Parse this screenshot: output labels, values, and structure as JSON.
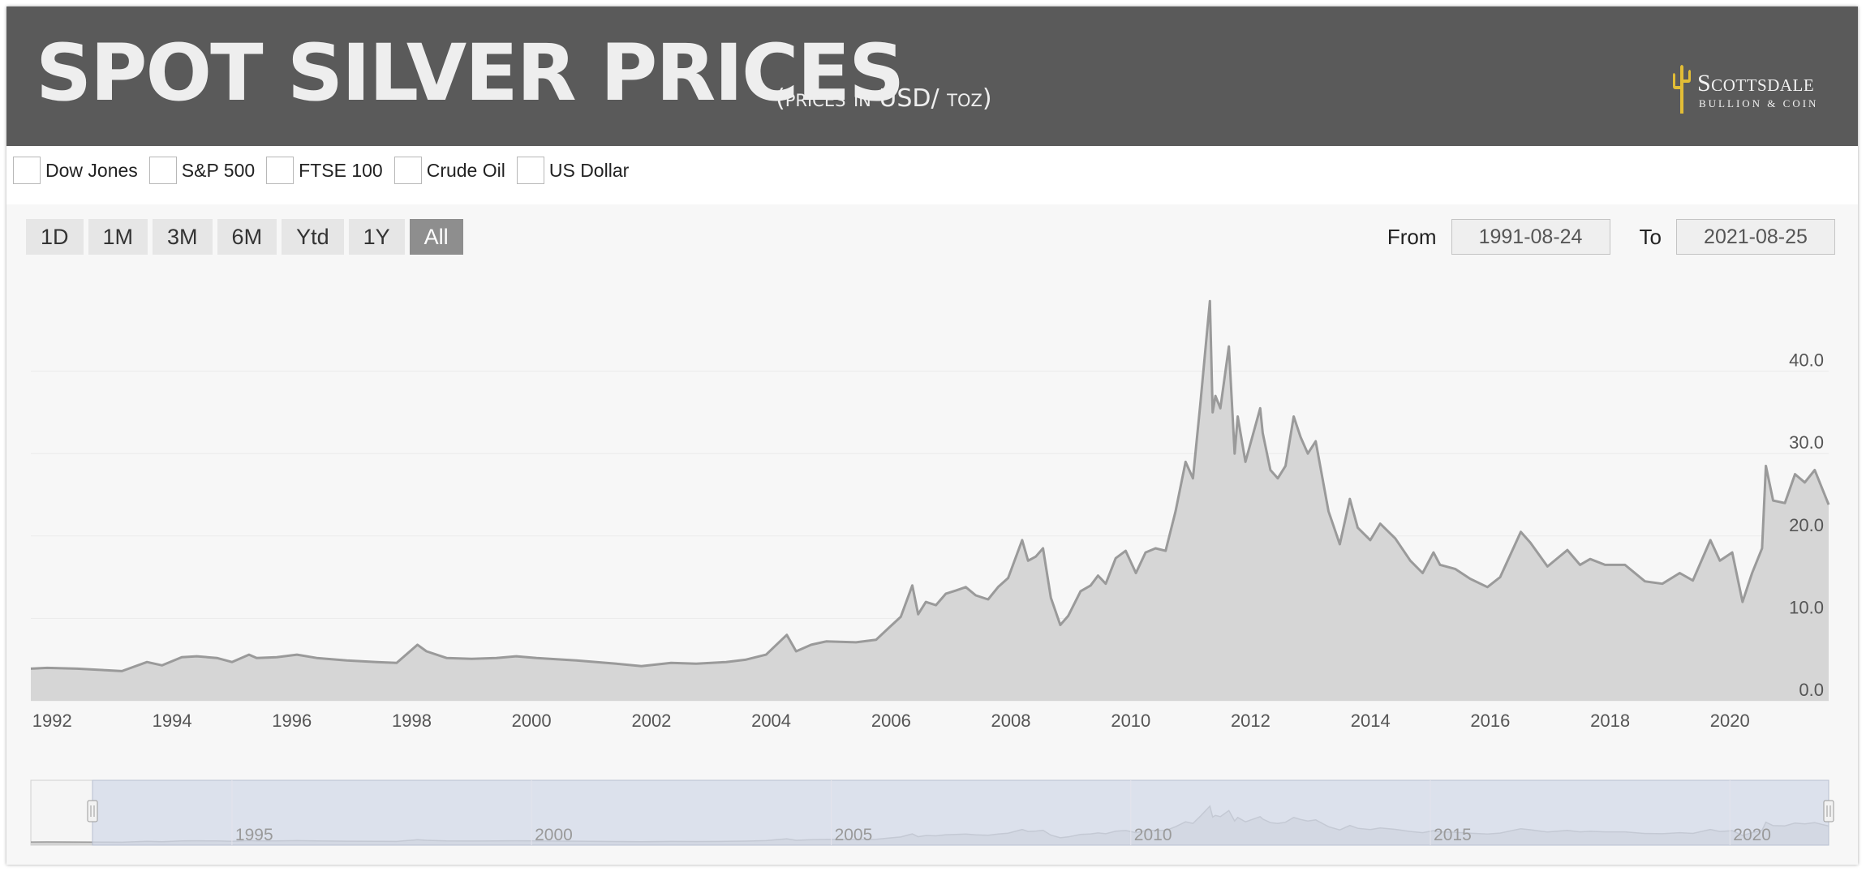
{
  "header": {
    "title": "SPOT SILVER PRICES",
    "subtitle": "(prices in USD/ toz)",
    "logo_name": "Scottsdale",
    "logo_sub": "BULLION & COIN",
    "background": "#5a5a5a",
    "logo_color": "#e2bd36"
  },
  "compare": {
    "items": [
      {
        "label": "Dow Jones",
        "checked": false
      },
      {
        "label": "S&P 500",
        "checked": false
      },
      {
        "label": "FTSE 100",
        "checked": false
      },
      {
        "label": "Crude Oil",
        "checked": false
      },
      {
        "label": "US Dollar",
        "checked": false
      }
    ]
  },
  "range_selector": {
    "buttons": [
      "1D",
      "1M",
      "3M",
      "6M",
      "Ytd",
      "1Y",
      "All"
    ],
    "selected": "All",
    "from_label": "From",
    "from_value": "1991-08-24",
    "to_label": "To",
    "to_value": "2021-08-25"
  },
  "chart_data": {
    "type": "area",
    "title": "SPOT SILVER PRICES",
    "xlabel": "",
    "ylabel": "",
    "xlim": [
      "1991-08-24",
      "2021-08-25"
    ],
    "ylim": [
      0,
      50
    ],
    "y_ticks": [
      "0.0",
      "10.0",
      "20.0",
      "30.0",
      "40.0"
    ],
    "x_ticks": [
      "1992",
      "1994",
      "1996",
      "1998",
      "2000",
      "2002",
      "2004",
      "2006",
      "2008",
      "2010",
      "2012",
      "2014",
      "2016",
      "2018",
      "2020"
    ],
    "navigator_ticks": [
      "1995",
      "2000",
      "2005",
      "2010",
      "2015",
      "2020"
    ],
    "grid": true,
    "line_color": "#9a9a9a",
    "fill_color": "#d6d6d6",
    "navigator_mask_color": "#d3dae8",
    "series": [
      {
        "x": [
          "1991-08-24",
          "1991-12-01",
          "1992-06-01",
          "1992-12-01",
          "1993-03-01",
          "1993-08-01",
          "1993-11-01",
          "1994-03-01",
          "1994-06-01",
          "1994-10-01",
          "1995-01-01",
          "1995-04-15",
          "1995-06-01",
          "1995-10-01",
          "1996-02-01",
          "1996-06-01",
          "1996-12-01",
          "1997-06-01",
          "1997-10-01",
          "1998-02-05",
          "1998-04-01",
          "1998-08-01",
          "1999-01-01",
          "1999-06-01",
          "1999-10-01",
          "2000-02-01",
          "2000-10-01",
          "2001-06-01",
          "2001-11-01",
          "2002-05-01",
          "2002-10-01",
          "2003-04-01",
          "2003-08-01",
          "2003-12-01",
          "2004-04-05",
          "2004-06-01",
          "2004-09-01",
          "2004-12-01",
          "2005-06-01",
          "2005-10-01",
          "2005-12-15",
          "2006-03-01",
          "2006-05-10",
          "2006-06-15",
          "2006-08-01",
          "2006-10-01",
          "2006-12-01",
          "2007-02-01",
          "2007-04-01",
          "2007-06-01",
          "2007-08-15",
          "2007-10-15",
          "2007-12-15",
          "2008-03-10",
          "2008-04-15",
          "2008-06-01",
          "2008-07-15",
          "2008-09-01",
          "2008-10-28",
          "2008-12-15",
          "2009-03-01",
          "2009-05-01",
          "2009-06-15",
          "2009-08-01",
          "2009-10-01",
          "2009-12-01",
          "2010-02-01",
          "2010-04-01",
          "2010-06-01",
          "2010-08-01",
          "2010-10-01",
          "2010-12-01",
          "2011-01-15",
          "2011-03-01",
          "2011-04-28",
          "2011-05-15",
          "2011-06-01",
          "2011-07-01",
          "2011-08-22",
          "2011-09-26",
          "2011-10-15",
          "2011-12-01",
          "2012-02-29",
          "2012-03-15",
          "2012-05-01",
          "2012-06-15",
          "2012-08-01",
          "2012-09-20",
          "2012-11-01",
          "2012-12-15",
          "2013-02-01",
          "2013-04-20",
          "2013-06-28",
          "2013-08-28",
          "2013-10-15",
          "2013-12-31",
          "2014-03-01",
          "2014-06-01",
          "2014-09-01",
          "2014-11-15",
          "2015-01-20",
          "2015-03-01",
          "2015-06-01",
          "2015-09-01",
          "2015-12-15",
          "2016-03-01",
          "2016-07-05",
          "2016-09-01",
          "2016-12-15",
          "2017-04-15",
          "2017-07-01",
          "2017-09-01",
          "2017-12-01",
          "2018-04-01",
          "2018-08-01",
          "2018-11-15",
          "2019-03-01",
          "2019-05-20",
          "2019-09-04",
          "2019-11-01",
          "2020-01-15",
          "2020-03-18",
          "2020-05-15",
          "2020-07-15",
          "2020-08-07",
          "2020-09-20",
          "2020-12-01",
          "2021-02-01",
          "2021-04-01",
          "2021-06-01",
          "2021-08-25"
        ],
        "y": [
          3.9,
          4.0,
          3.9,
          3.7,
          3.6,
          4.7,
          4.3,
          5.3,
          5.4,
          5.2,
          4.7,
          5.6,
          5.2,
          5.3,
          5.6,
          5.2,
          4.9,
          4.7,
          4.6,
          6.8,
          6.0,
          5.2,
          5.1,
          5.2,
          5.4,
          5.2,
          4.9,
          4.5,
          4.2,
          4.6,
          4.5,
          4.7,
          5.0,
          5.6,
          8.0,
          6.0,
          6.8,
          7.2,
          7.1,
          7.4,
          8.8,
          10.2,
          14.0,
          10.5,
          12.0,
          11.6,
          13.0,
          13.4,
          13.8,
          12.8,
          12.3,
          13.8,
          14.9,
          19.5,
          17.0,
          17.5,
          18.5,
          12.5,
          9.2,
          10.3,
          13.3,
          14.0,
          15.2,
          14.2,
          17.3,
          18.2,
          15.5,
          18.0,
          18.5,
          18.2,
          23.0,
          29.0,
          27.0,
          36.0,
          48.5,
          35.0,
          37.0,
          35.5,
          43.0,
          30.0,
          34.5,
          29.0,
          35.5,
          32.5,
          28.0,
          27.0,
          28.5,
          34.5,
          32.0,
          30.0,
          31.5,
          23.0,
          19.0,
          24.5,
          21.0,
          19.5,
          21.5,
          19.7,
          17.0,
          15.5,
          18.0,
          16.5,
          16.0,
          14.8,
          13.8,
          15.0,
          20.5,
          19.2,
          16.3,
          18.3,
          16.5,
          17.2,
          16.5,
          16.5,
          14.5,
          14.2,
          15.5,
          14.6,
          19.5,
          17.0,
          18.0,
          12.0,
          15.5,
          18.5,
          28.5,
          24.3,
          24.0,
          27.5,
          26.5,
          28.0,
          23.8
        ]
      }
    ]
  }
}
